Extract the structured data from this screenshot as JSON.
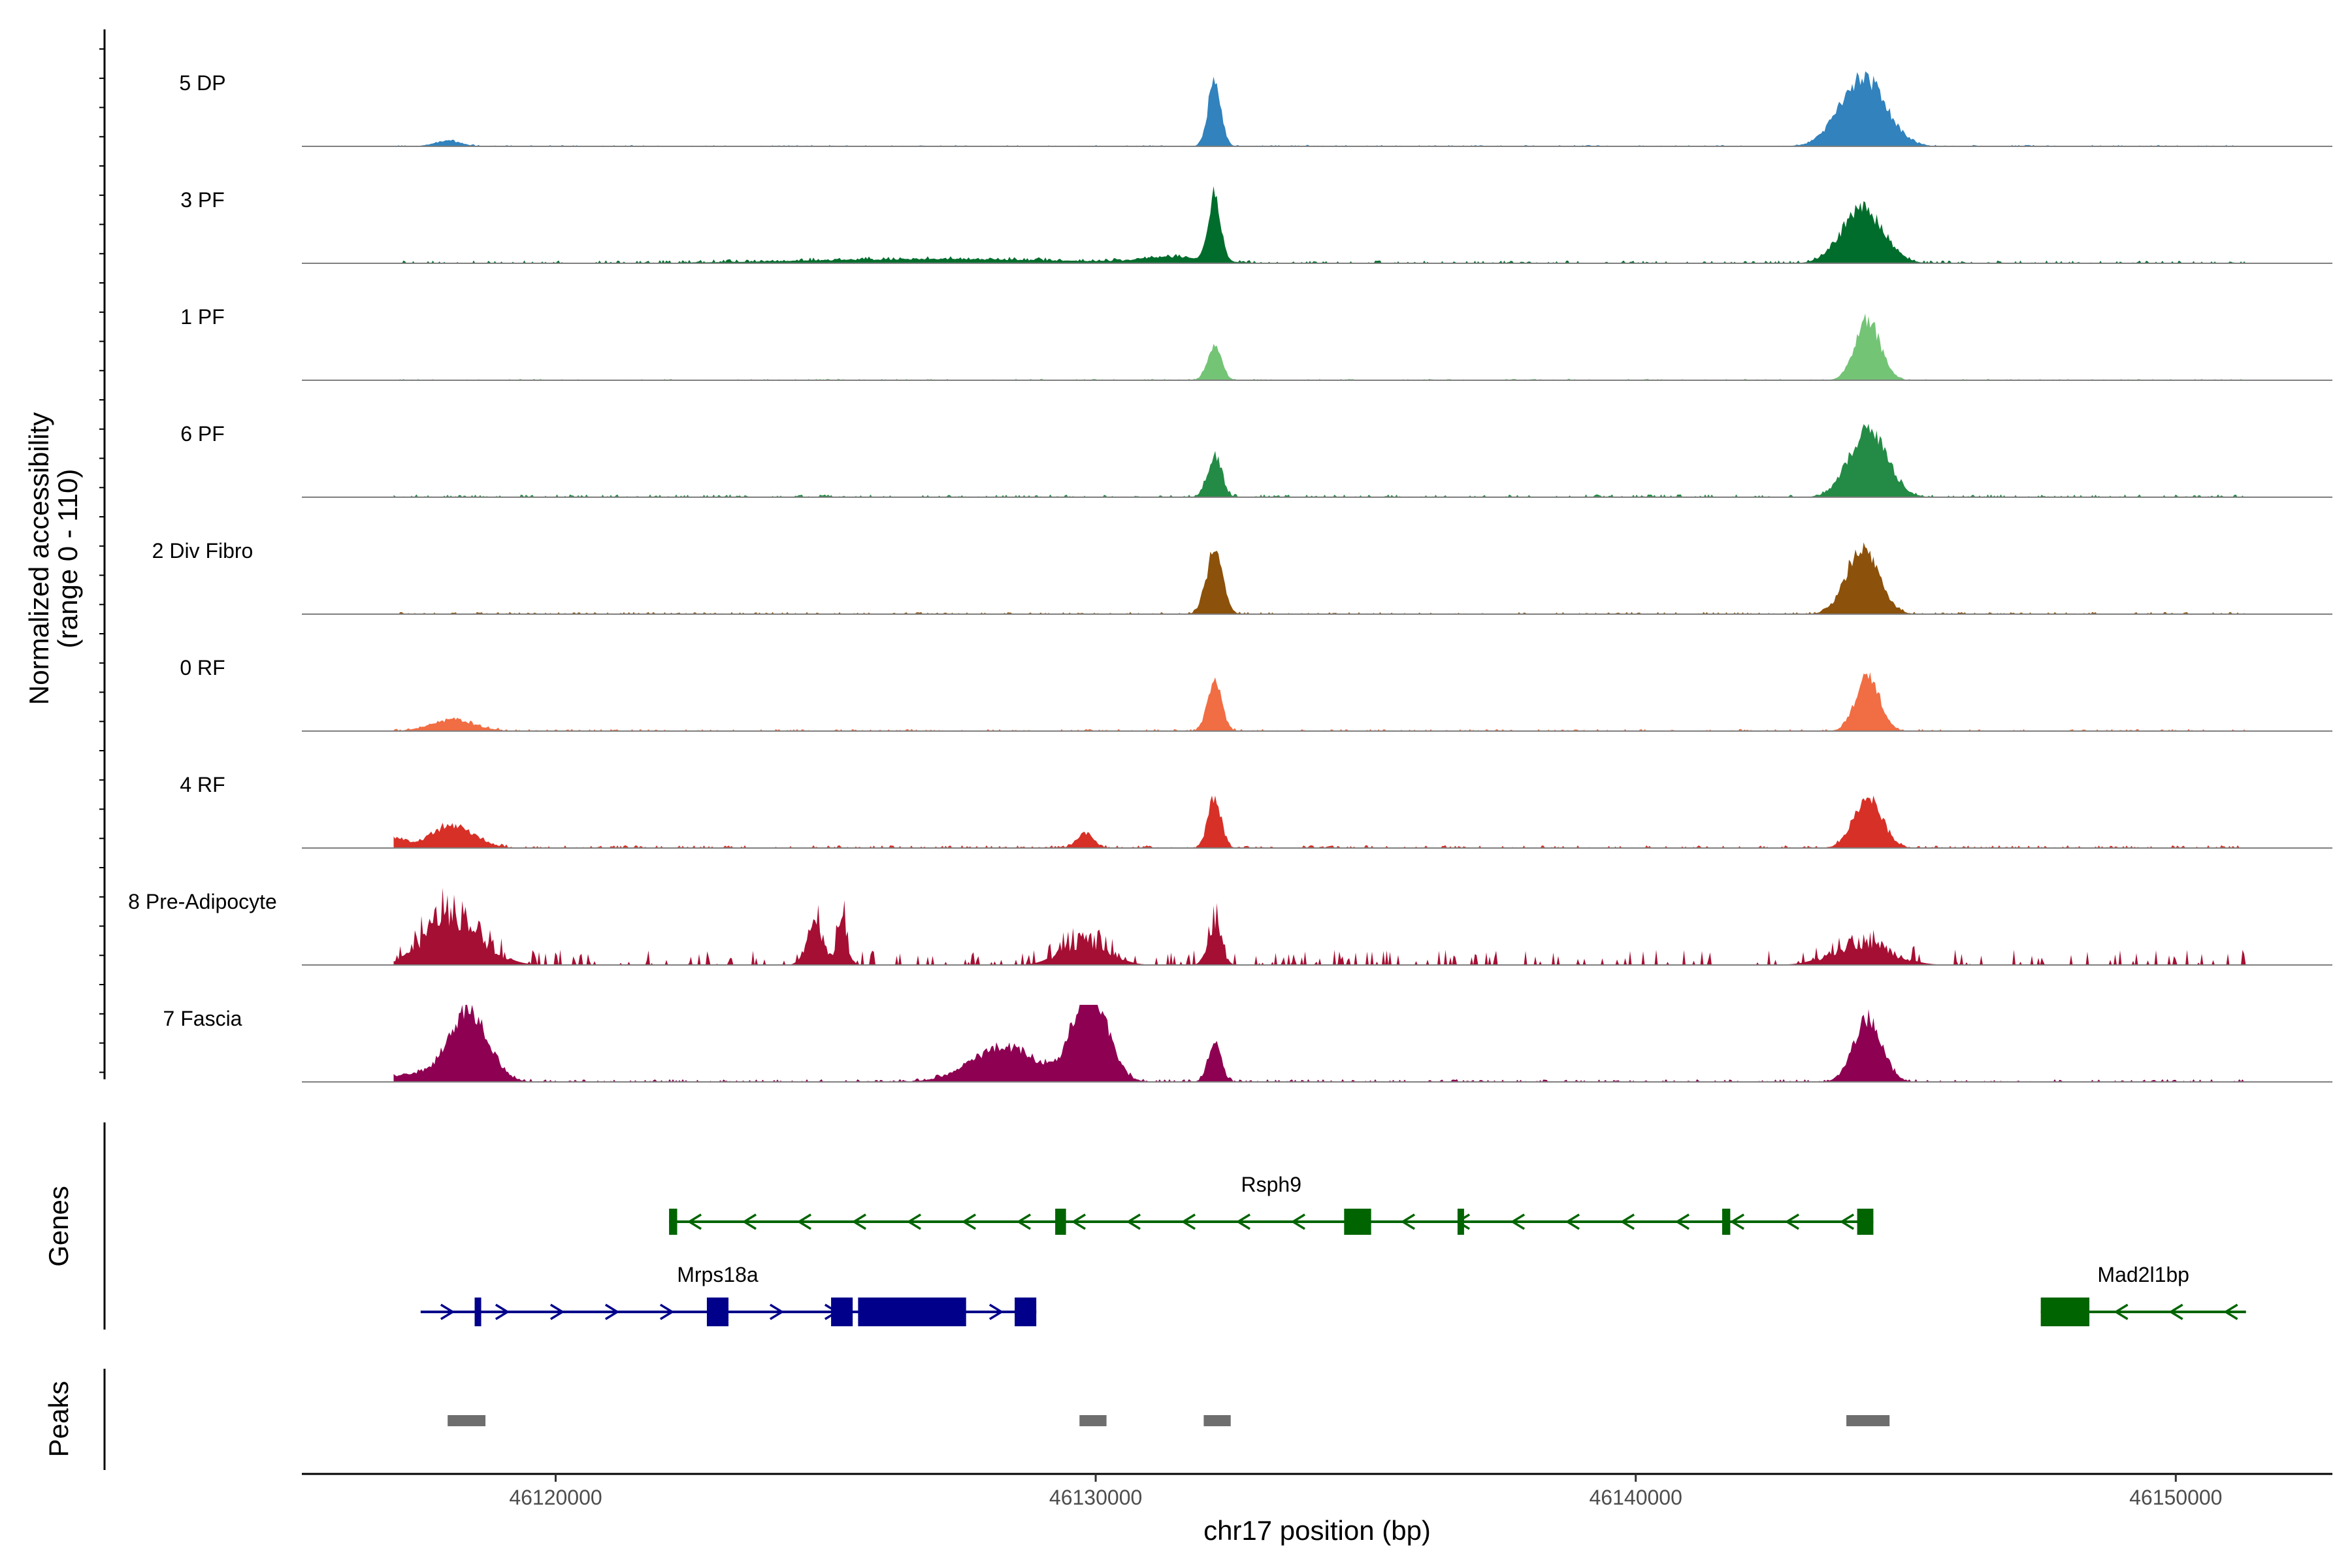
{
  "chart_data": {
    "type": "area",
    "chromosome": "chr17",
    "xlabel": "chr17 position (bp)",
    "ylabel_line1": "Normalized accessibility",
    "ylabel_line2": "(range 0 - 110)",
    "ylim": [
      0,
      110
    ],
    "xlim": [
      46115300,
      46152900
    ],
    "xticks": [
      46120000,
      46130000,
      46140000,
      46150000
    ],
    "xtick_labels": [
      "46120000",
      "46130000",
      "46140000",
      "46150000"
    ],
    "genes_panel_label": "Genes",
    "peaks_panel_label": "Peaks",
    "series": [
      {
        "name": "5 DP",
        "color": "#3182BD",
        "peaks": [
          [
            46118000,
            8,
            250
          ],
          [
            46132200,
            95,
            120
          ],
          [
            46144200,
            100,
            420
          ]
        ],
        "noise": 2,
        "dense": 0
      },
      {
        "name": "3 PF",
        "color": "#006D2C",
        "peaks": [
          [
            46127000,
            6,
            2500
          ],
          [
            46131500,
            8,
            600
          ],
          [
            46132200,
            98,
            110
          ],
          [
            46144200,
            78,
            380
          ]
        ],
        "noise": 4,
        "dense": 0
      },
      {
        "name": "1 PF",
        "color": "#74C476",
        "peaks": [
          [
            46132200,
            50,
            130
          ],
          [
            46144300,
            85,
            230
          ]
        ],
        "noise": 2,
        "dense": 0
      },
      {
        "name": "6 PF",
        "color": "#238B45",
        "peaks": [
          [
            46132200,
            60,
            130
          ],
          [
            46144300,
            95,
            350
          ]
        ],
        "noise": 4,
        "dense": 0
      },
      {
        "name": "2 Div Fibro",
        "color": "#8C510A",
        "peaks": [
          [
            46132200,
            90,
            150
          ],
          [
            46144200,
            95,
            300
          ]
        ],
        "noise": 3,
        "dense": 0
      },
      {
        "name": "0 RF",
        "color": "#F16D43",
        "peaks": [
          [
            46118100,
            16,
            400
          ],
          [
            46132200,
            72,
            130
          ],
          [
            46144300,
            78,
            220
          ]
        ],
        "noise": 3,
        "dense": 0
      },
      {
        "name": "4 RF",
        "color": "#D73027",
        "peaks": [
          [
            46117000,
            14,
            220
          ],
          [
            46118100,
            32,
            400
          ],
          [
            46129800,
            22,
            150
          ],
          [
            46132200,
            75,
            120
          ],
          [
            46144300,
            70,
            260
          ]
        ],
        "noise": 4,
        "dense": 0
      },
      {
        "name": "8 Pre-Adipocyte",
        "color": "#A50F33",
        "peaks": [
          [
            46118100,
            90,
            500
          ],
          [
            46124800,
            70,
            150
          ],
          [
            46125300,
            75,
            100
          ],
          [
            46129800,
            42,
            400
          ],
          [
            46132200,
            78,
            120
          ],
          [
            46144200,
            40,
            500
          ]
        ],
        "noise": 10,
        "dense": 1
      },
      {
        "name": "7 Fascia",
        "color": "#8E0152",
        "peaks": [
          [
            46117500,
            12,
            600
          ],
          [
            46118400,
            100,
            350
          ],
          [
            46128300,
            50,
            600
          ],
          [
            46129900,
            130,
            320
          ],
          [
            46132200,
            55,
            120
          ],
          [
            46144300,
            90,
            260
          ]
        ],
        "noise": 4,
        "dense": 0
      }
    ],
    "genes": [
      {
        "name": "Rsph9",
        "strand": "-",
        "start": 46122100,
        "end": 46144400,
        "exons": [
          [
            46122100,
            46122250
          ],
          [
            46129250,
            46129450
          ],
          [
            46134600,
            46135100
          ],
          [
            46136700,
            46136800
          ],
          [
            46141600,
            46141750
          ],
          [
            46144100,
            46144400
          ]
        ],
        "color": "#006400",
        "row": 1
      },
      {
        "name": "Mrps18a",
        "strand": "+",
        "start": 46117500,
        "end": 46128900,
        "exons": [
          [
            46118500,
            46118550
          ],
          [
            46122800,
            46123200
          ],
          [
            46125100,
            46125500
          ],
          [
            46125600,
            46127600
          ],
          [
            46128500,
            46128900
          ]
        ],
        "color": "#00008B",
        "row": 2
      },
      {
        "name": "Mad2l1bp",
        "strand": "-",
        "start": 46147500,
        "end": 46151300,
        "exons": [
          [
            46147500,
            46148400
          ]
        ],
        "color": "#006400",
        "row": 2
      }
    ],
    "peak_regions": [
      [
        46118000,
        46118700
      ],
      [
        46129700,
        46130200
      ],
      [
        46132000,
        46132500
      ],
      [
        46143900,
        46144700
      ]
    ]
  }
}
